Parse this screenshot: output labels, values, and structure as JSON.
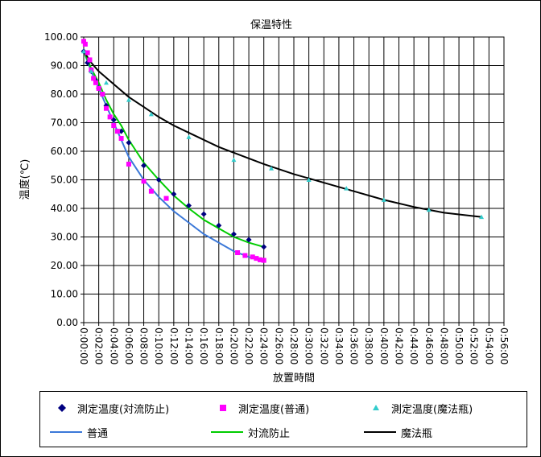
{
  "chart_data": {
    "type": "scatter",
    "title": "保温特性",
    "xlabel": "放置時間",
    "ylabel": "温度(℃)",
    "ylim": [
      0,
      100
    ],
    "xlim": [
      0,
      56
    ],
    "y_ticks": [
      "0.00",
      "10.00",
      "20.00",
      "30.00",
      "40.00",
      "50.00",
      "60.00",
      "70.00",
      "80.00",
      "90.00",
      "100.00"
    ],
    "x_ticks": [
      "0:00:00",
      "0:02:00",
      "0:04:00",
      "0:06:00",
      "0:08:00",
      "0:10:00",
      "0:12:00",
      "0:14:00",
      "0:16:00",
      "0:18:00",
      "0:20:00",
      "0:22:00",
      "0:24:00",
      "0:26:00",
      "0:28:00",
      "0:30:00",
      "0:32:00",
      "0:34:00",
      "0:36:00",
      "0:38:00",
      "0:40:00",
      "0:42:00",
      "0:44:00",
      "0:46:00",
      "0:48:00",
      "0:50:00",
      "0:52:00",
      "0:54:00",
      "0:56:00"
    ],
    "grid": true,
    "legend_position": "bottom",
    "series": [
      {
        "name": "測定温度(対流防止)",
        "kind": "points",
        "marker": "diamond",
        "color": "#000080",
        "x": [
          0,
          0.5,
          1,
          1.5,
          2,
          3,
          4,
          5,
          6,
          8,
          10,
          12,
          14,
          16,
          18,
          20,
          22,
          24
        ],
        "y": [
          95,
          91,
          88,
          85,
          82,
          76,
          71,
          67,
          63,
          55,
          50,
          45,
          41,
          38,
          34,
          31,
          29,
          26.5
        ]
      },
      {
        "name": "測定温度(普通)",
        "kind": "points",
        "marker": "square",
        "color": "#ff00ff",
        "x": [
          0,
          0.2,
          0.5,
          0.8,
          1,
          1.3,
          1.6,
          2,
          2.5,
          3,
          3.5,
          4,
          4.5,
          5,
          6,
          8,
          9,
          11,
          20.5,
          21.5,
          22.5,
          23,
          23.5,
          24
        ],
        "y": [
          98.5,
          97.5,
          94.5,
          92,
          88.5,
          85.5,
          84,
          82,
          80,
          75,
          72,
          69,
          67,
          64.5,
          55.5,
          49.5,
          46,
          43.5,
          24.5,
          23.5,
          23,
          22.5,
          22,
          21.8
        ]
      },
      {
        "name": "測定温度(魔法瓶)",
        "kind": "points",
        "marker": "triangle",
        "color": "#33cccc",
        "x": [
          0,
          1,
          3,
          6,
          9,
          14,
          20,
          25,
          30,
          35,
          40,
          46,
          53
        ],
        "y": [
          95,
          88,
          84,
          78,
          73,
          65,
          57,
          54,
          50,
          47,
          43,
          39.5,
          37
        ]
      },
      {
        "name": "普通",
        "kind": "line",
        "color": "#3b78d8",
        "x": [
          0,
          1,
          2,
          3,
          4,
          5,
          6,
          7,
          8,
          9,
          10,
          12,
          14,
          16,
          18,
          20,
          22,
          24
        ],
        "y": [
          95,
          88,
          82,
          76,
          70,
          64,
          58,
          54,
          50,
          47,
          44,
          39,
          35,
          31,
          28,
          25,
          23,
          21.5
        ]
      },
      {
        "name": "対流防止",
        "kind": "line",
        "color": "#00cc00",
        "x": [
          0,
          1,
          2,
          3,
          4,
          5,
          6,
          7,
          8,
          9,
          10,
          12,
          14,
          16,
          18,
          20,
          22,
          24
        ],
        "y": [
          95,
          89,
          84,
          78,
          73,
          69,
          64,
          60,
          56,
          53,
          50,
          44.5,
          40,
          36,
          33,
          30,
          28,
          26.5
        ]
      },
      {
        "name": "魔法瓶",
        "kind": "line",
        "color": "#000000",
        "x": [
          0,
          1,
          2,
          4,
          6,
          8,
          10,
          12,
          14,
          16,
          18,
          20,
          24,
          28,
          32,
          36,
          40,
          44,
          48,
          52,
          53
        ],
        "y": [
          95,
          91,
          88,
          83.5,
          79,
          75.5,
          72,
          69,
          66.5,
          64,
          61.5,
          59.5,
          55.5,
          52,
          49,
          46,
          43,
          40.5,
          38.5,
          37.3,
          37
        ]
      }
    ]
  },
  "legend": {
    "item1": "測定温度(対流防止)",
    "item2": "測定温度(普通)",
    "item3": "測定温度(魔法瓶)",
    "item4": "普通",
    "item5": "対流防止",
    "item6": "魔法瓶"
  }
}
